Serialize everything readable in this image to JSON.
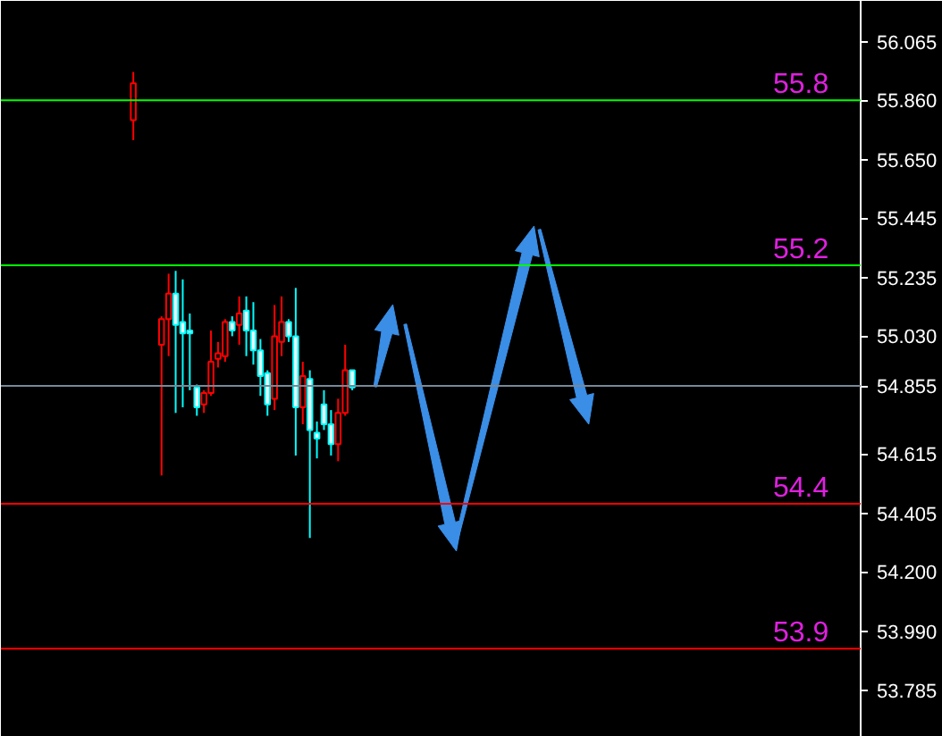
{
  "chart_data": {
    "type": "candlestick",
    "categories": [
      null,
      null,
      null,
      null,
      null,
      null,
      null,
      null,
      null,
      null,
      null,
      null,
      null,
      null,
      null,
      null,
      null,
      null,
      null,
      null,
      null,
      null,
      null,
      null,
      null,
      null,
      null,
      null,
      null,
      null,
      null,
      null,
      null,
      null,
      null,
      null,
      null,
      null,
      null,
      null,
      null,
      null,
      null,
      null,
      null,
      null,
      null,
      null,
      null,
      null,
      null,
      null,
      null,
      null,
      null,
      null,
      null,
      null,
      null,
      null,
      null,
      null,
      null,
      null,
      null,
      null,
      null,
      null,
      null,
      null,
      null,
      null,
      null,
      null,
      null,
      null,
      null,
      null,
      null,
      null,
      null,
      null,
      null,
      null,
      null,
      null,
      null,
      null,
      null,
      null,
      null,
      null,
      null,
      null,
      null,
      null,
      null,
      null,
      null,
      null,
      null,
      null,
      null,
      null,
      null,
      null,
      null,
      null,
      null,
      null,
      null,
      null,
      null,
      null,
      null,
      null,
      null,
      null,
      null,
      null,
      null
    ],
    "ohlc": [
      null,
      null,
      null,
      null,
      null,
      null,
      null,
      null,
      null,
      null,
      null,
      null,
      null,
      null,
      null,
      null,
      null,
      [
        55.79,
        55.96,
        55.72,
        55.92
      ],
      null,
      null,
      null,
      [
        55.0,
        55.1,
        54.54,
        55.09
      ],
      [
        55.09,
        55.25,
        54.96,
        55.18
      ],
      [
        55.18,
        55.26,
        54.76,
        55.07
      ],
      [
        55.08,
        55.23,
        54.78,
        55.04
      ],
      [
        55.05,
        55.11,
        54.84,
        55.04
      ],
      [
        54.85,
        54.86,
        54.75,
        54.78
      ],
      [
        54.79,
        54.84,
        54.76,
        54.83
      ],
      [
        54.83,
        55.05,
        54.82,
        54.94
      ],
      [
        54.95,
        55.01,
        54.92,
        54.97
      ],
      [
        54.96,
        55.09,
        54.94,
        55.08
      ],
      [
        55.08,
        55.1,
        55.03,
        55.05
      ],
      [
        55.07,
        55.17,
        55.0,
        55.11
      ],
      [
        55.12,
        55.17,
        54.96,
        55.05
      ],
      [
        55.05,
        55.15,
        54.93,
        54.98
      ],
      [
        54.98,
        55.02,
        54.82,
        54.89
      ],
      [
        54.9,
        54.91,
        54.75,
        54.79
      ],
      [
        54.81,
        55.14,
        54.77,
        55.03
      ],
      [
        55.01,
        55.17,
        54.96,
        55.08
      ],
      [
        55.08,
        55.09,
        55.01,
        55.03
      ],
      [
        55.03,
        55.2,
        54.61,
        54.78
      ],
      [
        54.78,
        54.94,
        54.72,
        54.89
      ],
      [
        54.88,
        54.91,
        54.32,
        54.7
      ],
      [
        54.69,
        54.73,
        54.6,
        54.67
      ],
      [
        54.79,
        54.84,
        54.7,
        54.72
      ],
      [
        54.72,
        54.77,
        54.61,
        54.65
      ],
      [
        54.65,
        54.81,
        54.59,
        54.76
      ],
      [
        54.76,
        55.0,
        54.75,
        54.91
      ],
      [
        54.91,
        54.91,
        54.84,
        54.85
      ],
      null,
      null,
      null,
      null,
      null,
      null,
      null,
      null,
      null,
      null,
      null,
      null,
      null,
      null,
      null,
      null,
      null,
      null,
      null,
      null,
      null,
      null,
      null,
      null,
      null,
      null,
      null,
      null,
      null,
      null,
      null,
      null,
      null,
      null,
      null,
      null,
      null,
      null,
      null,
      null,
      null,
      null,
      null,
      null,
      null,
      null,
      null,
      null,
      null,
      null,
      null,
      null,
      null,
      null,
      null,
      null,
      null,
      null,
      null,
      null,
      null,
      null,
      null,
      null,
      null,
      null,
      null,
      null,
      null,
      null,
      null,
      null
    ],
    "colors": [
      null,
      null,
      null,
      null,
      null,
      null,
      null,
      null,
      null,
      null,
      null,
      null,
      null,
      null,
      null,
      null,
      null,
      "#ff0000",
      null,
      null,
      null,
      "#ff0000",
      "#ff0000",
      "#00ffff",
      "#00ffff",
      "#00ffff",
      "#00ffff",
      "#ff0000",
      "#ff0000",
      "#ff0000",
      "#ff0000",
      "#00ffff",
      "#ff0000",
      "#00ffff",
      "#00ffff",
      "#00ffff",
      "#00ffff",
      "#ff0000",
      "#ff0000",
      "#00ffff",
      "#00ffff",
      "#ff0000",
      "#00ffff",
      "#00ffff",
      "#00ffff",
      "#00ffff",
      "#ff0000",
      "#ff0000",
      "#00ffff",
      null,
      null,
      null,
      null,
      null,
      null,
      null,
      null,
      null,
      null,
      null,
      null,
      null,
      null,
      null,
      null,
      null,
      null,
      null,
      null,
      null,
      null,
      null,
      null,
      null,
      null,
      null,
      null,
      null,
      null,
      null,
      null,
      null,
      null,
      null,
      null,
      null,
      null,
      null,
      null,
      null,
      null,
      null,
      null,
      null,
      null,
      null,
      null,
      null,
      null,
      null,
      null,
      null,
      null,
      null,
      null,
      null,
      null,
      null,
      null,
      null,
      null,
      null,
      null,
      null,
      null,
      null,
      null,
      null,
      null,
      null,
      null
    ],
    "ylim": [
      53.62,
      56.21
    ],
    "yticks": [
      56.065,
      {
        "value": 55.86,
        "label": "55.860"
      },
      {
        "value": 55.65,
        "label": "55.650"
      },
      55.445,
      55.235,
      {
        "value": 55.03,
        "label": "55.030"
      },
      54.855,
      54.615,
      54.405,
      {
        "value": 54.2,
        "label": "54.200"
      },
      {
        "value": 53.99,
        "label": "53.990"
      },
      53.785
    ],
    "tick_labels": "y",
    "ref_lines": [
      {
        "axis": "y",
        "value": 55.86,
        "color": "#00ff00"
      },
      {
        "axis": "y",
        "value": 55.28,
        "color": "#00ff00"
      },
      {
        "axis": "y",
        "value": 54.855,
        "color": "#778899"
      },
      {
        "axis": "y",
        "value": 54.44,
        "color": "#ff0000"
      },
      {
        "axis": "y",
        "value": 53.93,
        "color": "#ff0000"
      }
    ],
    "annotations": [
      {
        "text": "55.8",
        "y": 55.86
      },
      {
        "text": "55.2",
        "y": 55.28
      },
      {
        "text": "54.4",
        "y": 54.44
      },
      {
        "text": "53.9",
        "y": 53.93
      }
    ]
  }
}
